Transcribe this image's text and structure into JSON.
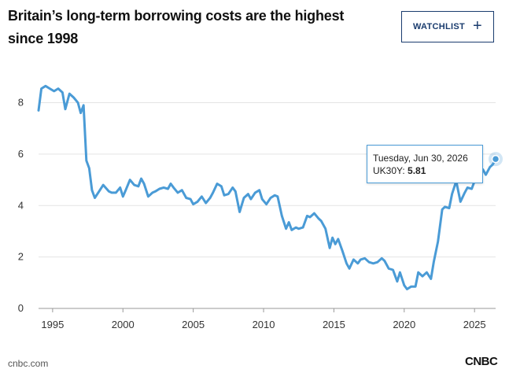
{
  "header": {
    "title": "Britain’s long-term borrowing costs are the highest since 1998",
    "watchlist_label": "WATCHLIST"
  },
  "tooltip": {
    "date": "Tuesday, Jun 30, 2026",
    "series_label": "UK30Y:",
    "value": "5.81"
  },
  "footer": {
    "source": "cnbc.com",
    "logo_text": "CNBC"
  },
  "chart_data": {
    "type": "line",
    "title": "Britain’s long-term borrowing costs are the highest since 1998",
    "xlabel": "",
    "ylabel": "",
    "xlim": [
      1994,
      2026.5
    ],
    "ylim": [
      0,
      9.7
    ],
    "grid": true,
    "color": "#4a9bd6",
    "x_ticks": [
      "1995",
      "2000",
      "2005",
      "2010",
      "2015",
      "2020",
      "2025"
    ],
    "y_ticks": [
      "0",
      "2",
      "4",
      "6",
      "8"
    ],
    "series": [
      {
        "name": "UK30Y",
        "x": [
          1994.0,
          1994.2,
          1994.5,
          1994.8,
          1995.1,
          1995.4,
          1995.7,
          1995.9,
          1996.2,
          1996.5,
          1996.8,
          1997.0,
          1997.2,
          1997.4,
          1997.6,
          1997.8,
          1998.0,
          1998.3,
          1998.6,
          1999.0,
          1999.2,
          1999.5,
          1999.8,
          2000.0,
          2000.2,
          2000.5,
          2000.8,
          2001.1,
          2001.3,
          2001.5,
          2001.8,
          2002.1,
          2002.3,
          2002.6,
          2002.9,
          2003.2,
          2003.4,
          2003.6,
          2003.9,
          2004.2,
          2004.5,
          2004.8,
          2005.0,
          2005.3,
          2005.6,
          2005.9,
          2006.2,
          2006.4,
          2006.7,
          2007.0,
          2007.2,
          2007.5,
          2007.8,
          2008.0,
          2008.3,
          2008.6,
          2008.9,
          2009.1,
          2009.4,
          2009.7,
          2009.9,
          2010.2,
          2010.5,
          2010.8,
          2011.0,
          2011.3,
          2011.6,
          2011.8,
          2012.0,
          2012.3,
          2012.5,
          2012.8,
          2013.1,
          2013.3,
          2013.6,
          2013.9,
          2014.1,
          2014.4,
          2014.7,
          2014.9,
          2015.1,
          2015.3,
          2015.6,
          2015.9,
          2016.1,
          2016.4,
          2016.7,
          2016.9,
          2017.2,
          2017.5,
          2017.8,
          2018.1,
          2018.4,
          2018.6,
          2018.9,
          2019.2,
          2019.5,
          2019.7,
          2020.0,
          2020.2,
          2020.5,
          2020.8,
          2021.0,
          2021.3,
          2021.6,
          2021.9,
          2022.1,
          2022.4,
          2022.7,
          2022.9,
          2023.2,
          2023.4,
          2023.7,
          2024.0,
          2024.3,
          2024.5,
          2024.8,
          2025.1,
          2025.3,
          2025.6,
          2025.8,
          2026.1,
          2026.3,
          2026.5
        ],
        "y": [
          7.7,
          8.55,
          8.65,
          8.55,
          8.45,
          8.55,
          8.4,
          7.75,
          8.35,
          8.2,
          8.0,
          7.6,
          7.9,
          5.75,
          5.45,
          4.6,
          4.3,
          4.55,
          4.8,
          4.55,
          4.5,
          4.5,
          4.7,
          4.35,
          4.6,
          5.0,
          4.8,
          4.75,
          5.05,
          4.85,
          4.35,
          4.5,
          4.55,
          4.65,
          4.7,
          4.65,
          4.85,
          4.7,
          4.5,
          4.6,
          4.3,
          4.25,
          4.05,
          4.15,
          4.35,
          4.1,
          4.3,
          4.5,
          4.85,
          4.75,
          4.4,
          4.45,
          4.7,
          4.55,
          3.75,
          4.3,
          4.45,
          4.25,
          4.5,
          4.6,
          4.25,
          4.05,
          4.3,
          4.4,
          4.35,
          3.6,
          3.1,
          3.35,
          3.05,
          3.15,
          3.1,
          3.15,
          3.6,
          3.55,
          3.7,
          3.5,
          3.4,
          3.1,
          2.35,
          2.75,
          2.5,
          2.7,
          2.25,
          1.75,
          1.55,
          1.9,
          1.75,
          1.9,
          1.95,
          1.8,
          1.75,
          1.8,
          1.95,
          1.85,
          1.55,
          1.5,
          1.05,
          1.4,
          0.9,
          0.75,
          0.85,
          0.85,
          1.4,
          1.25,
          1.4,
          1.15,
          1.8,
          2.6,
          3.85,
          3.95,
          3.9,
          4.45,
          4.95,
          4.15,
          4.5,
          4.7,
          4.65,
          5.1,
          5.3,
          5.4,
          5.2,
          5.5,
          5.6,
          5.81
        ]
      }
    ]
  }
}
